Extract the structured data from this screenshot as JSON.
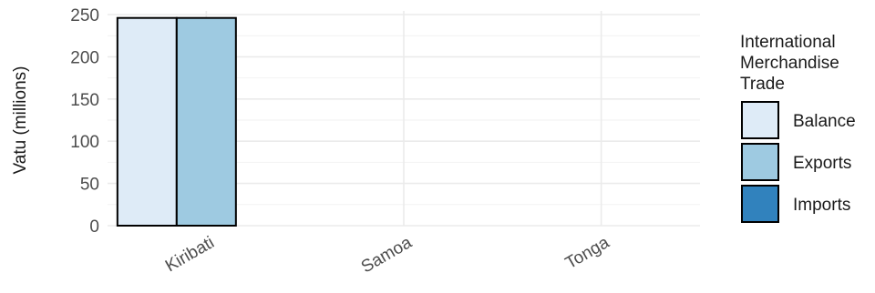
{
  "chart_data": {
    "type": "bar",
    "title": "",
    "xlabel": "",
    "ylabel": "Vatu (millions)",
    "categories": [
      "Kiribati",
      "Samoa",
      "Tonga"
    ],
    "series": [
      {
        "name": "Balance",
        "values": [
          246,
          0,
          0
        ],
        "color": "#deebf7"
      },
      {
        "name": "Exports",
        "values": [
          246,
          0,
          0
        ],
        "color": "#9ecae1"
      },
      {
        "name": "Imports",
        "values": [
          0,
          0,
          0
        ],
        "color": "#3182bd"
      }
    ],
    "ylim": [
      0,
      250
    ],
    "yticks": [
      0,
      50,
      100,
      150,
      200,
      250
    ],
    "grid": true,
    "legend": {
      "title_lines": [
        "International",
        "Merchandise",
        "Trade"
      ],
      "placement": "right"
    }
  }
}
